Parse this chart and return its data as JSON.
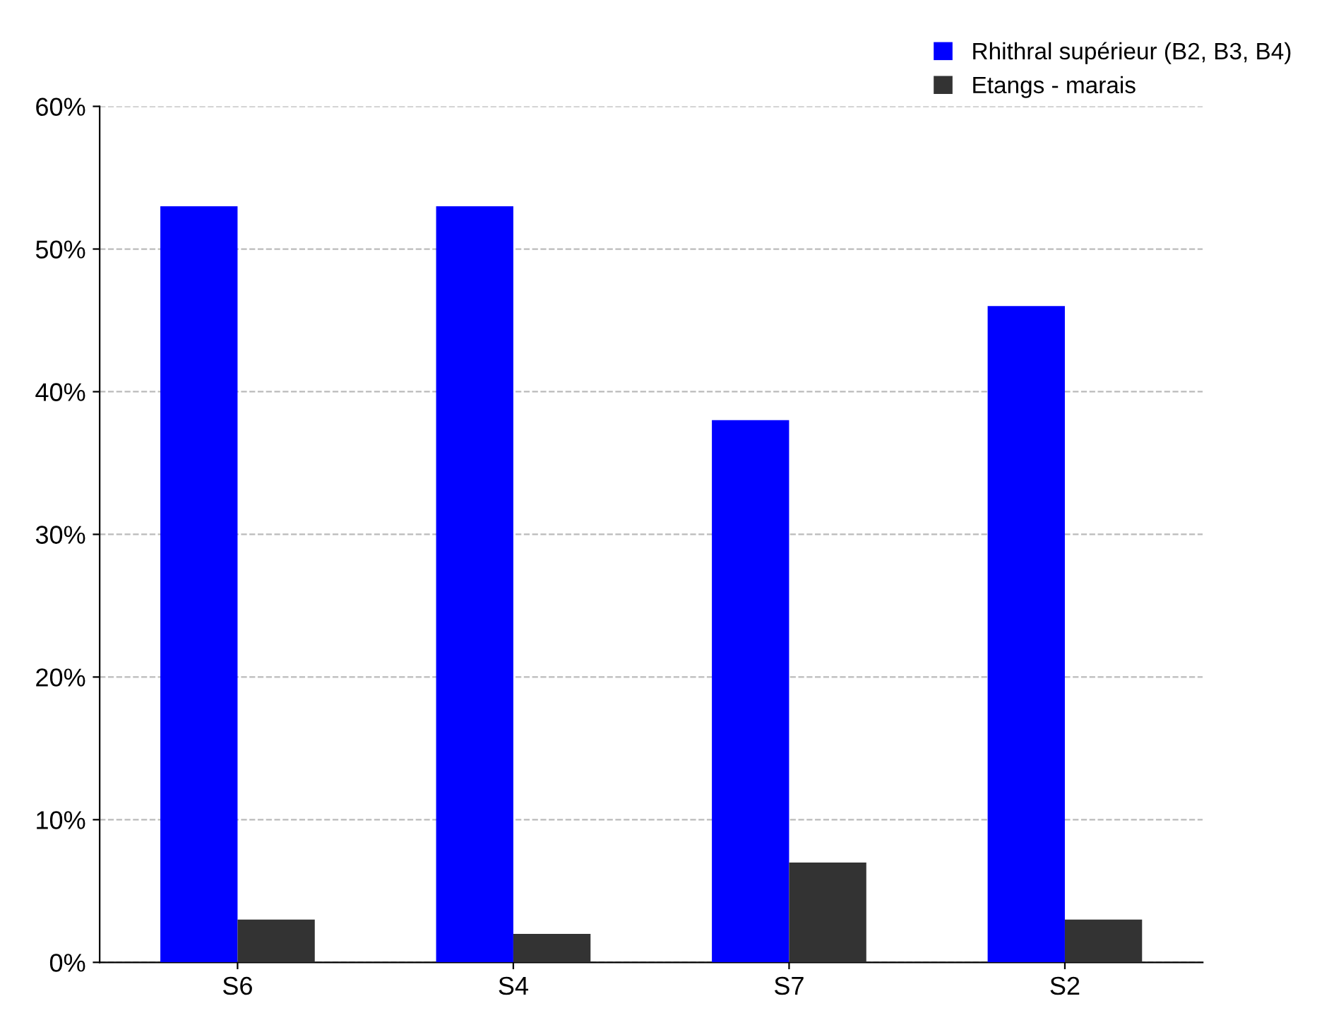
{
  "chart_data": {
    "type": "bar",
    "categories": [
      "S6",
      "S4",
      "S7",
      "S2"
    ],
    "series": [
      {
        "name": "Rhithral supérieur (B2, B3, B4)",
        "color": "#0000ff",
        "values": [
          53,
          53,
          38,
          46
        ]
      },
      {
        "name": "Etangs - marais",
        "color": "#333333",
        "values": [
          3,
          2,
          7,
          3
        ]
      }
    ],
    "ylim": [
      0,
      60
    ],
    "yticks": [
      {
        "value": 0,
        "label": "0%"
      },
      {
        "value": 10,
        "label": "10%"
      },
      {
        "value": 20,
        "label": "20%"
      },
      {
        "value": 30,
        "label": "30%"
      },
      {
        "value": 40,
        "label": "40%"
      },
      {
        "value": 50,
        "label": "50%"
      },
      {
        "value": 60,
        "label": "60%"
      }
    ],
    "grid": "y",
    "line_style": "dashed",
    "legend": "top right"
  }
}
